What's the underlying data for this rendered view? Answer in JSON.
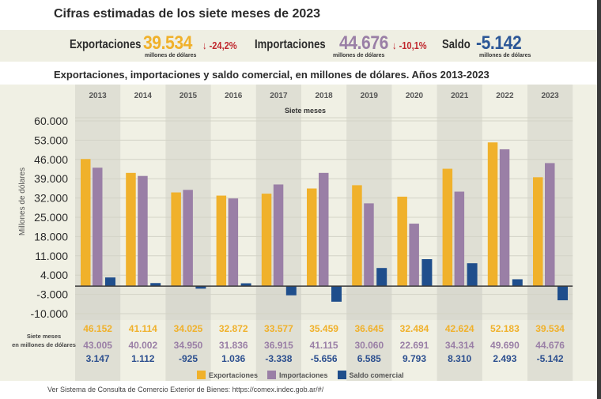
{
  "title": "Cifras estimadas de los siete meses de 2023",
  "summary": {
    "exports": {
      "label": "Exportaciones",
      "value": "39.534",
      "unit": "millones de dólares",
      "change": "-24,2%",
      "change_icon": "arrow-down-icon",
      "color": "#f0b12b"
    },
    "imports": {
      "label": "Importaciones",
      "value": "44.676",
      "unit": "millones de dólares",
      "change": "-10,1%",
      "change_icon": "arrow-down-icon",
      "color": "#9a7fa6"
    },
    "balance": {
      "label": "Saldo",
      "value": "-5.142",
      "unit": "millones de dólares",
      "color": "#2c5797"
    },
    "change_color": "#c0272d"
  },
  "chart_data": {
    "type": "bar",
    "title": "Exportaciones, importaciones y saldo comercial, en millones de dólares. Años 2013-2023",
    "subtitle": "Siete meses",
    "xlabel": "",
    "ylabel": "Millones de dólares",
    "ylim": [
      -10000,
      60000
    ],
    "yticks": [
      60000,
      53000,
      46000,
      39000,
      32000,
      25000,
      18000,
      11000,
      4000,
      -3000,
      -10000
    ],
    "ytick_labels": [
      "60.000",
      "53.000",
      "46.000",
      "39.000",
      "32.000",
      "25.000",
      "18.000",
      "11.000",
      "4.000",
      "-3.000",
      "-10.000"
    ],
    "grid": true,
    "legend_position": "bottom",
    "categories": [
      "2013",
      "2014",
      "2015",
      "2016",
      "2017",
      "2018",
      "2019",
      "2020",
      "2021",
      "2022",
      "2023"
    ],
    "series": [
      {
        "name": "Exportaciones",
        "color": "#f0b12b",
        "values": [
          46152,
          41114,
          34025,
          32872,
          33577,
          35459,
          36645,
          32484,
          42624,
          52183,
          39534
        ],
        "labels": [
          "46.152",
          "41.114",
          "34.025",
          "32.872",
          "33.577",
          "35.459",
          "36.645",
          "32.484",
          "42.624",
          "52.183",
          "39.534"
        ]
      },
      {
        "name": "Importaciones",
        "color": "#9a7fa6",
        "values": [
          43005,
          40002,
          34950,
          31836,
          36915,
          41115,
          30060,
          22691,
          34314,
          49690,
          44676
        ],
        "labels": [
          "43.005",
          "40.002",
          "34.950",
          "31.836",
          "36.915",
          "41.115",
          "30.060",
          "22.691",
          "34.314",
          "49.690",
          "44.676"
        ]
      },
      {
        "name": "Saldo comercial",
        "color": "#1f4e8c",
        "values": [
          3147,
          1112,
          -925,
          1036,
          -3338,
          -5656,
          6585,
          9793,
          8310,
          2493,
          -5142
        ],
        "labels": [
          "3.147",
          "1.112",
          "-925",
          "1.036",
          "-3.338",
          "-5.656",
          "6.585",
          "9.793",
          "8.310",
          "2.493",
          "-5.142"
        ]
      }
    ],
    "table_label_line1": "Siete meses",
    "table_label_line2": "en millones de dólares",
    "label_colors": [
      "#f0b12b",
      "#9a7fa6",
      "#2c4f8f"
    ]
  },
  "legend": [
    {
      "name": "Exportaciones",
      "color": "#f0b12b"
    },
    {
      "name": "Importaciones",
      "color": "#9a7fa6"
    },
    {
      "name": "Saldo comercial",
      "color": "#1f4e8c"
    }
  ],
  "footer": {
    "text": "Ver Sistema de Consulta de Comercio Exterior de Bienes: ",
    "link": "https://comex.indec.gob.ar/#/"
  }
}
